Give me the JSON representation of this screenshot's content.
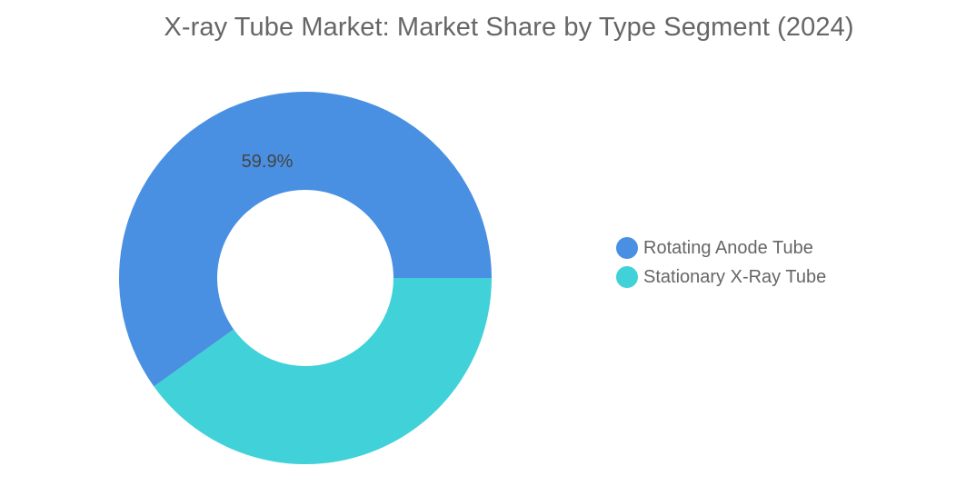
{
  "chart_data": {
    "type": "pie",
    "title": "X-ray Tube Market: Market Share by Type Segment (2024)",
    "donut": true,
    "legend_position": "right",
    "categories": [
      "Rotating Anode Tube",
      "Stationary X-Ray Tube"
    ],
    "values": [
      59.9,
      40.1
    ],
    "data_labels": [
      "59.9%",
      ""
    ],
    "colors": [
      "#4a90e2",
      "#41d1d8"
    ]
  }
}
